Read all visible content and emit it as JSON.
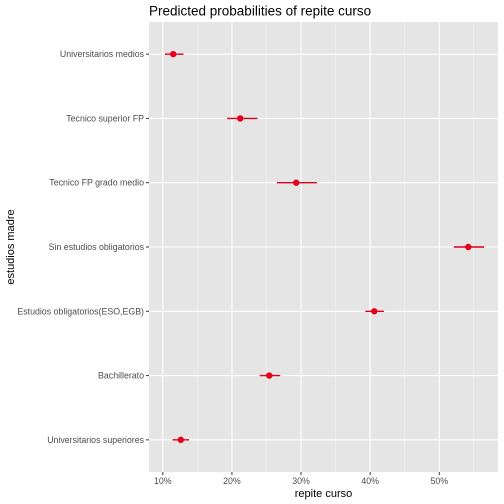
{
  "chart_data": {
    "type": "scatter",
    "title": "Predicted probabilities of repite curso",
    "xlabel": "repite curso",
    "ylabel": "estudios madre",
    "xlim": [
      0.08,
      0.585
    ],
    "x_ticks": [
      0.1,
      0.2,
      0.3,
      0.4,
      0.5
    ],
    "x_tick_labels": [
      "10%",
      "20%",
      "30%",
      "40%",
      "50%"
    ],
    "grid": true,
    "point_color": "#e3001b",
    "panel_background": "#e5e5e5",
    "categories": [
      "Universitarios medios",
      "Tecnico superior FP",
      "Tecnico FP grado medio",
      "Sin estudios obligatorios",
      "Estudios obligatorios(ESO,EGB)",
      "Bachillerato",
      "Universitarios superiores"
    ],
    "series": [
      {
        "values": [
          0.115,
          0.212,
          0.293,
          0.542,
          0.406,
          0.254,
          0.126
        ],
        "lower": [
          0.103,
          0.193,
          0.265,
          0.521,
          0.393,
          0.24,
          0.114
        ],
        "upper": [
          0.13,
          0.237,
          0.323,
          0.565,
          0.42,
          0.27,
          0.138
        ]
      }
    ]
  }
}
